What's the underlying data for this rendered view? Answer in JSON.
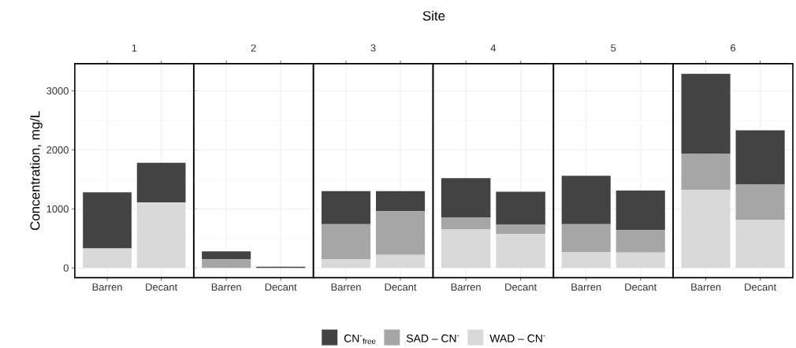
{
  "chart_data": [
    {
      "type": "bar",
      "stacked": true,
      "title": "1",
      "ylabel": "Concentration, mg/L",
      "annotations": [
        "Site"
      ],
      "categories": [
        "Barren",
        "Decant"
      ],
      "ylim": [
        -165,
        3460
      ],
      "yticks": [
        0,
        1000,
        2000,
        3000
      ],
      "grid": true,
      "legend": "bottom",
      "series": [
        {
          "name": "WAD – CN$^{-}$",
          "color": "#d9d9d9",
          "values": [
            330,
            1110
          ]
        },
        {
          "name": "SAD – CN$^{-}$",
          "color": "#a6a6a6",
          "values": [
            0,
            0
          ]
        },
        {
          "name": "CN$^{-}$$_{free}$",
          "color": "#434343",
          "values": [
            950,
            670
          ]
        }
      ]
    },
    {
      "type": "bar",
      "stacked": true,
      "title": "2",
      "categories": [
        "Barren",
        "Decant"
      ],
      "ylim": [
        -165,
        3460
      ],
      "yticks": [
        0,
        1000,
        2000,
        3000
      ],
      "grid": true,
      "tick_labels": "x",
      "series": [
        {
          "color": "#d9d9d9",
          "values": [
            0,
            0
          ]
        },
        {
          "color": "#a6a6a6",
          "values": [
            150,
            0
          ]
        },
        {
          "color": "#434343",
          "values": [
            130,
            20
          ]
        }
      ]
    },
    {
      "type": "bar",
      "stacked": true,
      "title": "3",
      "categories": [
        "Barren",
        "Decant"
      ],
      "ylim": [
        -165,
        3460
      ],
      "yticks": [
        0,
        1000,
        2000,
        3000
      ],
      "grid": true,
      "tick_labels": "x",
      "series": [
        {
          "color": "#d9d9d9",
          "values": [
            150,
            220
          ]
        },
        {
          "color": "#a6a6a6",
          "values": [
            590,
            740
          ]
        },
        {
          "color": "#434343",
          "values": [
            560,
            340
          ]
        }
      ]
    },
    {
      "type": "bar",
      "stacked": true,
      "title": "4",
      "categories": [
        "Barren",
        "Decant"
      ],
      "ylim": [
        -165,
        3460
      ],
      "yticks": [
        0,
        1000,
        2000,
        3000
      ],
      "grid": true,
      "tick_labels": "x",
      "series": [
        {
          "color": "#d9d9d9",
          "values": [
            650,
            570
          ]
        },
        {
          "color": "#a6a6a6",
          "values": [
            200,
            160
          ]
        },
        {
          "color": "#434343",
          "values": [
            670,
            560
          ]
        }
      ]
    },
    {
      "type": "bar",
      "stacked": true,
      "title": "5",
      "categories": [
        "Barren",
        "Decant"
      ],
      "ylim": [
        -165,
        3460
      ],
      "yticks": [
        0,
        1000,
        2000,
        3000
      ],
      "grid": true,
      "tick_labels": "x",
      "series": [
        {
          "color": "#d9d9d9",
          "values": [
            270,
            260
          ]
        },
        {
          "color": "#a6a6a6",
          "values": [
            470,
            380
          ]
        },
        {
          "color": "#434343",
          "values": [
            820,
            670
          ]
        }
      ]
    },
    {
      "type": "bar",
      "stacked": true,
      "title": "6",
      "categories": [
        "Barren",
        "Decant"
      ],
      "ylim": [
        -165,
        3460
      ],
      "yticks": [
        0,
        1000,
        2000,
        3000
      ],
      "grid": true,
      "tick_labels": "x",
      "series": [
        {
          "color": "#d9d9d9",
          "values": [
            1320,
            810
          ]
        },
        {
          "color": "#a6a6a6",
          "values": [
            610,
            600
          ]
        },
        {
          "color": "#434343",
          "values": [
            1360,
            920
          ]
        }
      ]
    }
  ]
}
